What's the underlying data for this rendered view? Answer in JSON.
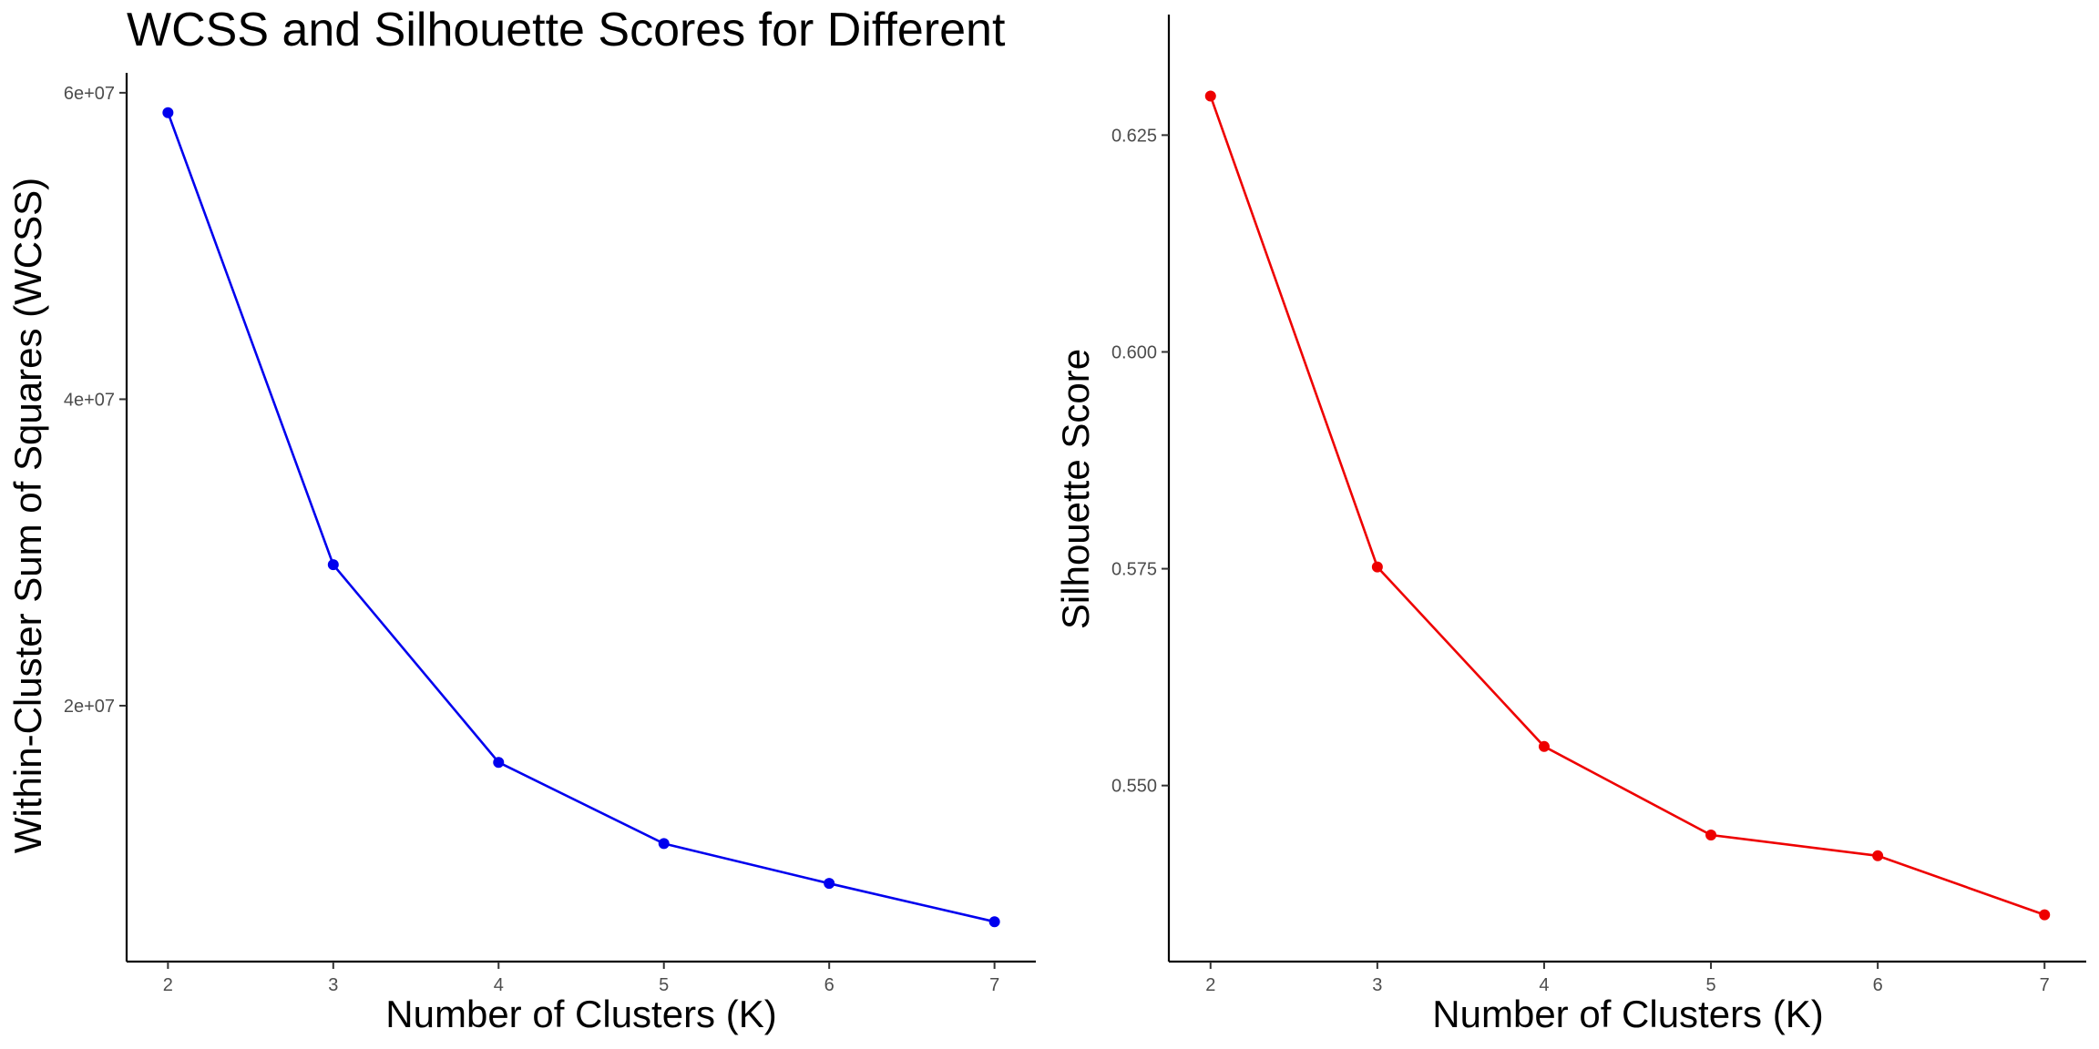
{
  "chart_data": [
    {
      "type": "line",
      "title": "WCSS and Silhouette Scores for Different",
      "xlabel": "Number of Clusters (K)",
      "ylabel": "Within-Cluster Sum of Squares (WCSS)",
      "x": [
        2,
        3,
        4,
        5,
        6,
        7
      ],
      "series": [
        {
          "values": [
            58700000,
            29200000,
            16300000,
            11000000,
            8400000,
            5900000
          ],
          "color": "#0000ee"
        }
      ],
      "xlim": [
        1.75,
        7.25
      ],
      "ylim": [
        3300000,
        61300000
      ],
      "xticks": [
        2,
        3,
        4,
        5,
        6,
        7
      ],
      "yticks": [
        20000000,
        40000000,
        60000000
      ],
      "ytick_labels": [
        "2e+07",
        "4e+07",
        "6e+07"
      ],
      "grid": false,
      "legend": "none"
    },
    {
      "type": "line",
      "title": "",
      "xlabel": "Number of Clusters (K)",
      "ylabel": "Silhouette Score",
      "x": [
        2,
        3,
        4,
        5,
        6,
        7
      ],
      "series": [
        {
          "values": [
            0.6295,
            0.5752,
            0.5545,
            0.5443,
            0.5419,
            0.5351
          ],
          "color": "#ee0000"
        }
      ],
      "xlim": [
        1.75,
        7.25
      ],
      "ylim": [
        0.5297,
        0.6389
      ],
      "xticks": [
        2,
        3,
        4,
        5,
        6,
        7
      ],
      "yticks": [
        0.55,
        0.575,
        0.6,
        0.625
      ],
      "ytick_labels": [
        "0.550",
        "0.575",
        "0.600",
        "0.625"
      ],
      "grid": false,
      "legend": "none"
    }
  ]
}
